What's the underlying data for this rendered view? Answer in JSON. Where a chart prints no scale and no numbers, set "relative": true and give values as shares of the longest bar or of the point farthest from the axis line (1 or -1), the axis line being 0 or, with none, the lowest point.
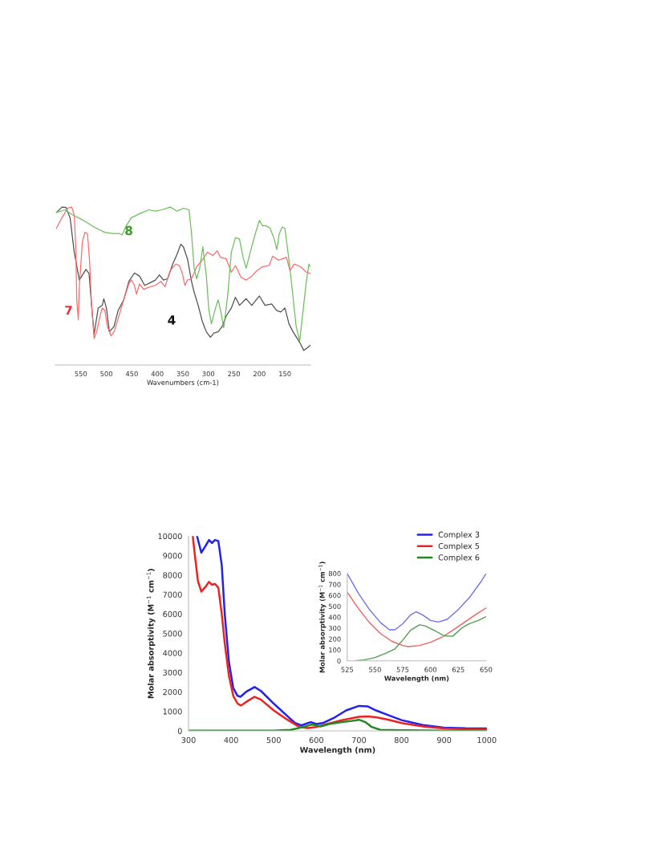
{
  "chart_data": [
    {
      "type": "line",
      "relative": true,
      "xlabel": "Wavenumbers (cm-1)",
      "xlim": [
        600,
        100
      ],
      "xticks": [
        550,
        500,
        450,
        400,
        350,
        300,
        250,
        200,
        150
      ],
      "tick_labels": "x",
      "grid": false,
      "legend": false,
      "series": [
        {
          "name": "4",
          "color": "#505050",
          "x": [
            598,
            587,
            579,
            571,
            563,
            553,
            545,
            540,
            534,
            529,
            524,
            516,
            508,
            505,
            500,
            494,
            485,
            477,
            466,
            456,
            445,
            435,
            425,
            414,
            404,
            396,
            388,
            380,
            370,
            362,
            354,
            349,
            341,
            333,
            328,
            320,
            312,
            304,
            296,
            289,
            281,
            273,
            265,
            255,
            247,
            239,
            226,
            215,
            200,
            189,
            176,
            166,
            158,
            150,
            142,
            134,
            121,
            113,
            106,
            100
          ],
          "values": [
            0.966,
            1.0,
            0.997,
            0.93,
            0.714,
            0.538,
            0.58,
            0.605,
            0.58,
            0.378,
            0.193,
            0.361,
            0.378,
            0.42,
            0.361,
            0.21,
            0.244,
            0.345,
            0.412,
            0.529,
            0.583,
            0.563,
            0.504,
            0.521,
            0.538,
            0.571,
            0.538,
            0.546,
            0.639,
            0.697,
            0.765,
            0.748,
            0.672,
            0.529,
            0.462,
            0.378,
            0.277,
            0.21,
            0.176,
            0.202,
            0.21,
            0.244,
            0.311,
            0.361,
            0.429,
            0.378,
            0.42,
            0.378,
            0.437,
            0.378,
            0.387,
            0.345,
            0.336,
            0.361,
            0.261,
            0.21,
            0.143,
            0.092,
            0.109,
            0.126
          ]
        },
        {
          "name": "7",
          "color": "#ff6a6a",
          "x": [
            598,
            587,
            576,
            568,
            563,
            560,
            558,
            555,
            553,
            547,
            542,
            537,
            533,
            529,
            524,
            519,
            513,
            508,
            503,
            498,
            491,
            485,
            477,
            466,
            456,
            451,
            445,
            441,
            435,
            427,
            417,
            404,
            393,
            385,
            375,
            364,
            357,
            351,
            346,
            341,
            333,
            323,
            312,
            302,
            291,
            283,
            276,
            265,
            255,
            247,
            236,
            226,
            215,
            205,
            194,
            181,
            174,
            163,
            155,
            147,
            140,
            132,
            119,
            108,
            100
          ],
          "values": [
            0.866,
            0.933,
            0.992,
            1.0,
            0.95,
            0.748,
            0.412,
            0.286,
            0.496,
            0.782,
            0.84,
            0.832,
            0.664,
            0.378,
            0.168,
            0.21,
            0.303,
            0.361,
            0.345,
            0.244,
            0.185,
            0.21,
            0.294,
            0.412,
            0.513,
            0.538,
            0.504,
            0.449,
            0.513,
            0.479,
            0.492,
            0.504,
            0.529,
            0.496,
            0.597,
            0.639,
            0.63,
            0.58,
            0.504,
            0.538,
            0.546,
            0.622,
            0.664,
            0.714,
            0.694,
            0.723,
            0.681,
            0.672,
            0.588,
            0.63,
            0.555,
            0.538,
            0.563,
            0.597,
            0.622,
            0.63,
            0.689,
            0.664,
            0.672,
            0.681,
            0.597,
            0.639,
            0.622,
            0.588,
            0.58
          ]
        },
        {
          "name": "8",
          "color": "#6cbf5a",
          "x": [
            598,
            581,
            566,
            545,
            524,
            503,
            487,
            474,
            469,
            461,
            451,
            435,
            417,
            404,
            391,
            375,
            362,
            349,
            338,
            333,
            328,
            323,
            317,
            311,
            304,
            299,
            294,
            286,
            281,
            276,
            270,
            262,
            255,
            247,
            239,
            232,
            226,
            218,
            208,
            200,
            194,
            187,
            179,
            171,
            166,
            161,
            155,
            150,
            142,
            134,
            128,
            121,
            115,
            108,
            103,
            100
          ],
          "values": [
            0.966,
            0.983,
            0.95,
            0.916,
            0.874,
            0.84,
            0.832,
            0.832,
            0.824,
            0.882,
            0.933,
            0.958,
            0.983,
            0.975,
            0.983,
            1.0,
            0.975,
            0.992,
            0.983,
            0.832,
            0.613,
            0.546,
            0.613,
            0.748,
            0.563,
            0.345,
            0.261,
            0.361,
            0.412,
            0.345,
            0.235,
            0.445,
            0.714,
            0.807,
            0.798,
            0.681,
            0.613,
            0.714,
            0.832,
            0.916,
            0.882,
            0.882,
            0.866,
            0.798,
            0.731,
            0.832,
            0.874,
            0.866,
            0.664,
            0.429,
            0.244,
            0.151,
            0.328,
            0.529,
            0.639,
            0.622
          ]
        }
      ]
    },
    {
      "type": "line",
      "xlabel": "Wavelength (nm)",
      "ylabel": "Molar absorptivity (M$^{−1}$ cm$^{−1}$)",
      "xlim": [
        300,
        1000
      ],
      "xticks": [
        300,
        400,
        500,
        600,
        700,
        800,
        900,
        1000
      ],
      "ylim": [
        0,
        10000
      ],
      "yticks": [
        0,
        1000,
        2000,
        3000,
        4000,
        5000,
        6000,
        7000,
        8000,
        9000,
        10000
      ],
      "grid": false,
      "legend": "top right",
      "series": [
        {
          "name": "Complex 3",
          "color": "#2222ee",
          "x": [
            320,
            330,
            340,
            348,
            355,
            362,
            370,
            378,
            385,
            395,
            405,
            415,
            422,
            435,
            455,
            470,
            500,
            530,
            550,
            565,
            578,
            587,
            600,
            615,
            640,
            670,
            700,
            720,
            740,
            770,
            800,
            850,
            900,
            950,
            1000
          ],
          "values": [
            10000,
            9150,
            9500,
            9800,
            9650,
            9800,
            9750,
            8500,
            6000,
            3500,
            2200,
            1800,
            1750,
            2000,
            2250,
            2050,
            1400,
            800,
            400,
            280,
            380,
            450,
            350,
            400,
            650,
            1050,
            1280,
            1260,
            1050,
            800,
            550,
            300,
            170,
            130,
            120
          ]
        },
        {
          "name": "Complex 5",
          "color": "#ee2222",
          "x": [
            310,
            315,
            322,
            330,
            340,
            348,
            355,
            362,
            370,
            378,
            385,
            395,
            405,
            415,
            423,
            440,
            455,
            470,
            500,
            530,
            560,
            580,
            600,
            625,
            660,
            700,
            720,
            740,
            770,
            800,
            850,
            900,
            950,
            1000
          ],
          "values": [
            10000,
            9000,
            7700,
            7150,
            7400,
            7650,
            7500,
            7550,
            7350,
            6000,
            4500,
            2800,
            1800,
            1400,
            1300,
            1550,
            1750,
            1600,
            1050,
            600,
            200,
            140,
            200,
            350,
            550,
            720,
            740,
            700,
            570,
            400,
            230,
            120,
            80,
            70
          ]
        },
        {
          "name": "Complex 6",
          "color": "#228822",
          "x": [
            300,
            400,
            500,
            540,
            570,
            590,
            610,
            630,
            660,
            680,
            700,
            715,
            730,
            750,
            800,
            850,
            900,
            1000
          ],
          "values": [
            10,
            10,
            10,
            50,
            200,
            330,
            230,
            350,
            450,
            500,
            570,
            450,
            200,
            50,
            30,
            20,
            10,
            10
          ]
        }
      ]
    },
    {
      "type": "line",
      "xlabel": "Wavelength (nm)",
      "ylabel": "Molar absorptivity (M$^{−1}$ cm$^{−1}$)",
      "xlim": [
        525,
        650
      ],
      "xticks": [
        525,
        550,
        575,
        600,
        625,
        650
      ],
      "ylim": [
        0,
        800
      ],
      "yticks": [
        0,
        100,
        200,
        300,
        400,
        500,
        600,
        700,
        800
      ],
      "grid": false,
      "legend": false,
      "series": [
        {
          "color": "#7070f0",
          "x": [
            525,
            535,
            545,
            555,
            563,
            568,
            575,
            582,
            587,
            593,
            600,
            607,
            615,
            625,
            635,
            645,
            650
          ],
          "values": [
            800,
            620,
            470,
            350,
            285,
            285,
            340,
            420,
            450,
            420,
            370,
            355,
            380,
            470,
            580,
            720,
            800
          ]
        },
        {
          "color": "#f06060",
          "x": [
            525,
            535,
            545,
            555,
            565,
            575,
            580,
            590,
            600,
            610,
            620,
            630,
            640,
            650
          ],
          "values": [
            630,
            480,
            350,
            250,
            180,
            140,
            130,
            140,
            170,
            215,
            280,
            350,
            420,
            485
          ]
        },
        {
          "color": "#50a050",
          "x": [
            532,
            540,
            550,
            560,
            568,
            575,
            582,
            590,
            595,
            605,
            612,
            620,
            628,
            635,
            643,
            650
          ],
          "values": [
            0,
            8,
            30,
            70,
            110,
            190,
            280,
            330,
            320,
            270,
            230,
            225,
            300,
            340,
            370,
            405
          ]
        }
      ]
    }
  ]
}
